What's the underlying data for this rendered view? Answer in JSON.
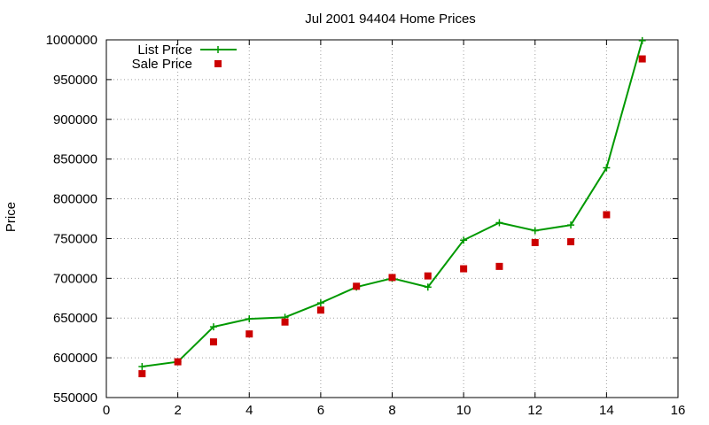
{
  "chart_data": {
    "type": "line",
    "title": "Jul 2001 94404 Home Prices",
    "xlabel": "",
    "ylabel": "Price",
    "xlim": [
      0,
      16
    ],
    "ylim": [
      550000,
      1000000
    ],
    "xticks": [
      0,
      2,
      4,
      6,
      8,
      10,
      12,
      14,
      16
    ],
    "yticks": [
      550000,
      600000,
      650000,
      700000,
      750000,
      800000,
      850000,
      900000,
      950000,
      1000000
    ],
    "grid": true,
    "legend_position": "top-left",
    "series": [
      {
        "name": "List Price",
        "style": "line-with-plus-markers",
        "color": "#009900",
        "x": [
          1,
          2,
          3,
          4,
          5,
          6,
          7,
          8,
          9,
          10,
          11,
          12,
          13,
          14,
          15
        ],
        "y": [
          589000,
          595000,
          639000,
          649000,
          651000,
          669000,
          689000,
          700000,
          689000,
          748000,
          770000,
          760000,
          767000,
          839000,
          999000
        ]
      },
      {
        "name": "Sale Price",
        "style": "square-markers",
        "color": "#cc0000",
        "x": [
          1,
          2,
          3,
          4,
          5,
          6,
          7,
          8,
          9,
          10,
          11,
          12,
          13,
          14,
          15
        ],
        "y": [
          580000,
          595000,
          620000,
          630000,
          645000,
          660000,
          690000,
          701000,
          703000,
          712000,
          715000,
          745000,
          746000,
          780000,
          976000
        ]
      }
    ]
  }
}
